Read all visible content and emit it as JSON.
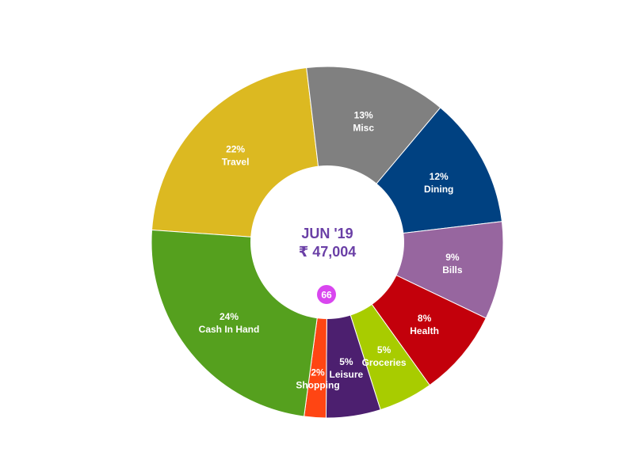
{
  "chart_data": {
    "type": "pie",
    "donut": true,
    "slices": [
      {
        "pct": 22,
        "pct_label": "22%",
        "name": "Travel",
        "color": "#dcb921"
      },
      {
        "pct": 13,
        "pct_label": "13%",
        "name": "Misc",
        "color": "#808080"
      },
      {
        "pct": 12,
        "pct_label": "12%",
        "name": "Dining",
        "color": "#004181"
      },
      {
        "pct": 9,
        "pct_label": "9%",
        "name": "Bills",
        "color": "#97669f"
      },
      {
        "pct": 8,
        "pct_label": "8%",
        "name": "Health",
        "color": "#c3000b"
      },
      {
        "pct": 5,
        "pct_label": "5%",
        "name": "Groceries",
        "color": "#a8cc00"
      },
      {
        "pct": 5,
        "pct_label": "5%",
        "name": "Leisure",
        "color": "#4c1f6f"
      },
      {
        "pct": 2,
        "pct_label": "2%",
        "name": "Shopping",
        "color": "#ff4513"
      },
      {
        "pct": 24,
        "pct_label": "24%",
        "name": "Cash In Hand",
        "color": "#55a01e"
      }
    ],
    "center": {
      "month": "JUN '19",
      "total": "₹ 47,004",
      "text_color": "#6a3fa6"
    },
    "badge": {
      "value": "66",
      "color": "#d946ef"
    }
  }
}
